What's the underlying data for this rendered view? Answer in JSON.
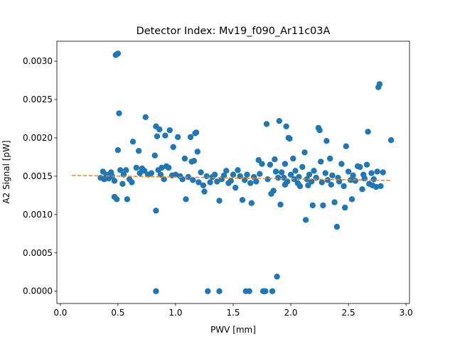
{
  "chart_data": {
    "type": "scatter",
    "title": "Detector Index: Mv19_f090_Ar11c03A",
    "xlabel": "PWV [mm]",
    "ylabel": "A2 Signal [pW]",
    "xlim": [
      -0.03,
      3.03
    ],
    "ylim": [
      -0.00016,
      0.00326
    ],
    "xticks": [
      0.0,
      0.5,
      1.0,
      1.5,
      2.0,
      2.5,
      3.0
    ],
    "xtick_labels": [
      "0.0",
      "0.5",
      "1.0",
      "1.5",
      "2.0",
      "2.5",
      "3.0"
    ],
    "yticks": [
      0.0,
      0.0005,
      0.001,
      0.0015,
      0.002,
      0.0025,
      0.003
    ],
    "ytick_labels": [
      "0.0000",
      "0.0005",
      "0.0010",
      "0.0015",
      "0.0020",
      "0.0025",
      "0.0030"
    ],
    "grid": false,
    "legend": "none",
    "colors": {
      "points": "#1f77b4",
      "fit": "#ff7f0e"
    },
    "series": [
      {
        "values": [
          [
            0.49,
            0.00309
          ],
          [
            0.48,
            0.00308
          ],
          [
            0.5,
            0.0031
          ],
          [
            0.51,
            0.00232
          ],
          [
            0.5,
            0.00184
          ],
          [
            0.47,
            0.00123
          ],
          [
            0.49,
            0.0012
          ],
          [
            0.58,
            0.0012
          ],
          [
            0.35,
            0.00148
          ],
          [
            0.37,
            0.00156
          ],
          [
            0.38,
            0.00146
          ],
          [
            0.4,
            0.00152
          ],
          [
            0.42,
            0.00147
          ],
          [
            0.44,
            0.00155
          ],
          [
            0.45,
            0.0015
          ],
          [
            0.47,
            0.00144
          ],
          [
            0.52,
            0.00158
          ],
          [
            0.54,
            0.0014
          ],
          [
            0.55,
            0.00152
          ],
          [
            0.57,
            0.00158
          ],
          [
            0.6,
            0.00146
          ],
          [
            0.62,
            0.00142
          ],
          [
            0.63,
            0.00195
          ],
          [
            0.66,
            0.00161
          ],
          [
            0.68,
            0.00183
          ],
          [
            0.69,
            0.00154
          ],
          [
            0.71,
            0.0016
          ],
          [
            0.73,
            0.00157
          ],
          [
            0.74,
            0.00227
          ],
          [
            0.76,
            0.00152
          ],
          [
            0.79,
            0.00154
          ],
          [
            0.82,
            0.00177
          ],
          [
            0.83,
            0.00215
          ],
          [
            0.84,
            0.00202
          ],
          [
            0.85,
            0.00158
          ],
          [
            0.83,
            0.00105
          ],
          [
            0.83,
            0.0
          ],
          [
            0.86,
            0.00211
          ],
          [
            0.87,
            0.00152
          ],
          [
            0.88,
            0.00161
          ],
          [
            0.9,
            0.00146
          ],
          [
            0.91,
            0.00203
          ],
          [
            0.92,
            0.00163
          ],
          [
            0.94,
            0.00161
          ],
          [
            0.95,
            0.0021
          ],
          [
            0.97,
            0.00151
          ],
          [
            0.98,
            0.00188
          ],
          [
            1.0,
            0.00152
          ],
          [
            1.02,
            0.00201
          ],
          [
            1.04,
            0.0015
          ],
          [
            1.06,
            0.00146
          ],
          [
            1.08,
            0.00173
          ],
          [
            1.09,
            0.0012
          ],
          [
            1.11,
            0.00149
          ],
          [
            1.13,
            0.00201
          ],
          [
            1.14,
            0.00169
          ],
          [
            1.15,
            0.00145
          ],
          [
            1.16,
            0.0017
          ],
          [
            1.17,
            0.00206
          ],
          [
            1.18,
            0.00207
          ],
          [
            1.19,
            0.00182
          ],
          [
            1.2,
            0.00142
          ],
          [
            1.22,
            0.00155
          ],
          [
            1.24,
            0.00138
          ],
          [
            1.25,
            0.0013
          ],
          [
            1.27,
            0.0015
          ],
          [
            1.28,
            0.0
          ],
          [
            1.3,
            0.00142
          ],
          [
            1.32,
            0.00149
          ],
          [
            1.34,
            0.00152
          ],
          [
            1.36,
            0.00143
          ],
          [
            1.38,
            0.00118
          ],
          [
            1.38,
            0.0
          ],
          [
            1.4,
            0.00146
          ],
          [
            1.42,
            0.00151
          ],
          [
            1.44,
            0.00157
          ],
          [
            1.46,
            0.00141
          ],
          [
            1.48,
            0.00144
          ],
          [
            1.5,
            0.00152
          ],
          [
            1.52,
            0.00135
          ],
          [
            1.54,
            0.00158
          ],
          [
            1.56,
            0.0015
          ],
          [
            1.58,
            0.00119
          ],
          [
            1.6,
            0.00145
          ],
          [
            1.61,
            0.0
          ],
          [
            1.62,
            0.00152
          ],
          [
            1.64,
            0.0
          ],
          [
            1.65,
            0.00141
          ],
          [
            1.66,
            0.00115
          ],
          [
            1.68,
            0.00149
          ],
          [
            1.7,
            0.00143
          ],
          [
            1.72,
            0.00171
          ],
          [
            1.73,
            0.00153
          ],
          [
            1.75,
            0.00166
          ],
          [
            1.76,
            0.0
          ],
          [
            1.77,
            0.0
          ],
          [
            1.78,
            0.0
          ],
          [
            1.79,
            0.00218
          ],
          [
            1.8,
            0.00146
          ],
          [
            1.82,
            0.00165
          ],
          [
            1.83,
            0.00127
          ],
          [
            1.84,
            0.0
          ],
          [
            1.85,
            0.00131
          ],
          [
            1.86,
            0.00172
          ],
          [
            1.87,
            0.00156
          ],
          [
            1.88,
            0.00019
          ],
          [
            1.89,
            0.00148
          ],
          [
            1.9,
            0.00222
          ],
          [
            1.91,
            0.00113
          ],
          [
            1.92,
            0.00155
          ],
          [
            1.94,
            0.00148
          ],
          [
            1.95,
            0.00166
          ],
          [
            1.96,
            0.00215
          ],
          [
            1.97,
            0.00143
          ],
          [
            1.98,
            0.002
          ],
          [
            1.99,
            0.00199
          ],
          [
            2.0,
            0.00152
          ],
          [
            2.02,
            0.00173
          ],
          [
            2.03,
            0.00146
          ],
          [
            2.04,
            0.00157
          ],
          [
            2.06,
            0.00141
          ],
          [
            2.07,
            0.00149
          ],
          [
            2.08,
            0.00137
          ],
          [
            2.1,
            0.00162
          ],
          [
            2.12,
            0.00181
          ],
          [
            2.13,
            0.00093
          ],
          [
            2.14,
            0.00146
          ],
          [
            2.16,
            0.00152
          ],
          [
            2.18,
            0.00143
          ],
          [
            2.19,
            0.00112
          ],
          [
            2.2,
            0.00157
          ],
          [
            2.22,
            0.00148
          ],
          [
            2.24,
            0.00213
          ],
          [
            2.25,
            0.0021
          ],
          [
            2.26,
            0.00169
          ],
          [
            2.27,
            0.00142
          ],
          [
            2.28,
            0.00112
          ],
          [
            2.3,
            0.00154
          ],
          [
            2.31,
            0.00196
          ],
          [
            2.32,
            0.00145
          ],
          [
            2.34,
            0.00173
          ],
          [
            2.36,
            0.00151
          ],
          [
            2.38,
            0.00116
          ],
          [
            2.4,
            0.00084
          ],
          [
            2.41,
            0.00148
          ],
          [
            2.42,
            0.00143
          ],
          [
            2.44,
            0.00166
          ],
          [
            2.46,
            0.00137
          ],
          [
            2.47,
            0.00109
          ],
          [
            2.48,
            0.00189
          ],
          [
            2.5,
            0.00156
          ],
          [
            2.52,
            0.00145
          ],
          [
            2.53,
            0.0012
          ],
          [
            2.54,
            0.00151
          ],
          [
            2.56,
            0.00144
          ],
          [
            2.58,
            0.00163
          ],
          [
            2.6,
            0.00162
          ],
          [
            2.62,
            0.00133
          ],
          [
            2.63,
            0.00152
          ],
          [
            2.64,
            0.00147
          ],
          [
            2.66,
            0.00165
          ],
          [
            2.67,
            0.00208
          ],
          [
            2.68,
            0.0014
          ],
          [
            2.7,
            0.00154
          ],
          [
            2.71,
            0.00138
          ],
          [
            2.72,
            0.00146
          ],
          [
            2.74,
            0.00136
          ],
          [
            2.75,
            0.00156
          ],
          [
            2.76,
            0.00266
          ],
          [
            2.77,
            0.0027
          ],
          [
            2.78,
            0.00137
          ],
          [
            2.8,
            0.00155
          ],
          [
            2.87,
            0.00197
          ],
          [
            2.35,
            0.00139
          ],
          [
            2.15,
            0.00138
          ],
          [
            1.95,
            0.00139
          ]
        ]
      }
    ],
    "fit_line": {
      "x": [
        0.1,
        2.87
      ],
      "y": [
        0.00151,
        0.001445
      ]
    }
  }
}
